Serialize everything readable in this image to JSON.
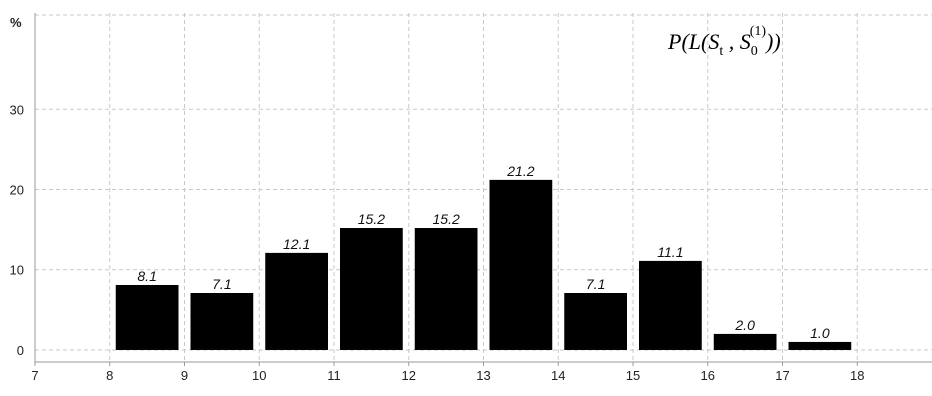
{
  "chart_data": {
    "type": "bar",
    "title": "",
    "xlabel": "",
    "ylabel": "%",
    "annotation": {
      "text": "P(L(S",
      "sub1": "t",
      "mid": " , S",
      "sub2": "0",
      "sup2": "(1)",
      "end": "))"
    },
    "x_ticks": [
      7,
      8,
      9,
      10,
      11,
      12,
      13,
      14,
      15,
      16,
      17,
      18
    ],
    "y_ticks": [
      0,
      10,
      20,
      30
    ],
    "xlim": [
      7,
      19
    ],
    "ylim": [
      -1.5,
      42
    ],
    "bars": [
      {
        "x0": 8,
        "x1": 9,
        "value": 8.1,
        "label": "8.1"
      },
      {
        "x0": 9,
        "x1": 10,
        "value": 7.1,
        "label": "7.1"
      },
      {
        "x0": 10,
        "x1": 11,
        "value": 12.1,
        "label": "12.1"
      },
      {
        "x0": 11,
        "x1": 12,
        "value": 15.2,
        "label": "15.2"
      },
      {
        "x0": 12,
        "x1": 13,
        "value": 15.2,
        "label": "15.2"
      },
      {
        "x0": 13,
        "x1": 14,
        "value": 21.2,
        "label": "21.2"
      },
      {
        "x0": 14,
        "x1": 15,
        "value": 7.1,
        "label": "7.1"
      },
      {
        "x0": 15,
        "x1": 16,
        "value": 11.1,
        "label": "11.1"
      },
      {
        "x0": 16,
        "x1": 17,
        "value": 2.0,
        "label": "2.0"
      },
      {
        "x0": 17,
        "x1": 18,
        "value": 1.0,
        "label": "1.0"
      }
    ],
    "grid": true,
    "colors": {
      "bar": "#000000",
      "grid": "#c8c8c8",
      "axis": "#999999"
    }
  }
}
